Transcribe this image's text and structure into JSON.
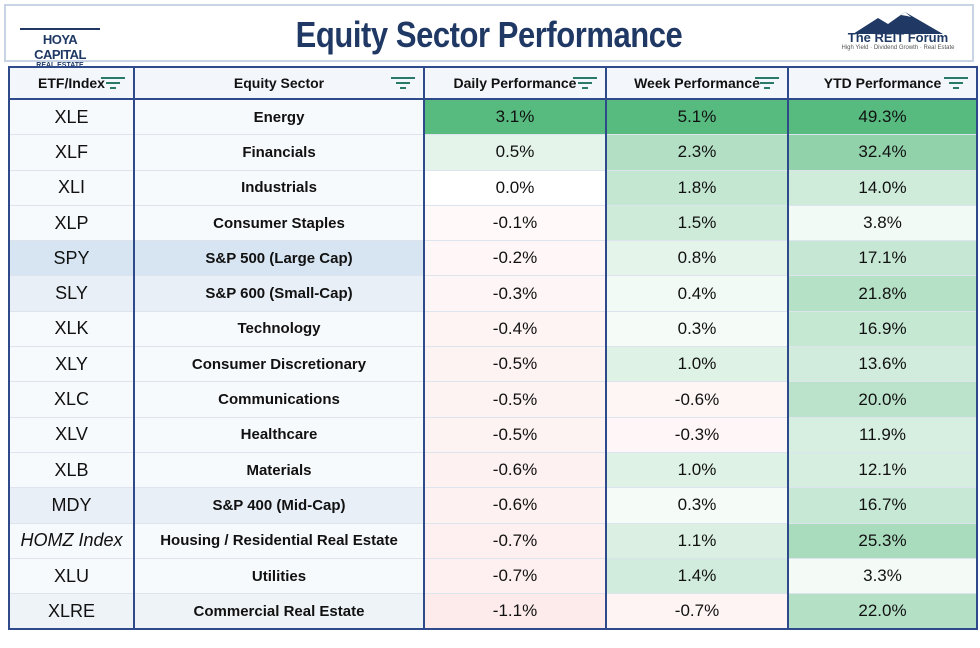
{
  "header": {
    "title": "Equity Sector Performance",
    "logo_left": "HOYA CAPITAL",
    "logo_left_sub": "REAL ESTATE",
    "logo_right": "The REIT Forum",
    "logo_right_sub": "High Yield · Dividend Growth · Real Estate"
  },
  "table": {
    "columns": [
      "ETF/Index",
      "Equity Sector",
      "Daily Performance",
      "Week Performance",
      "YTD Performance"
    ],
    "rows": [
      [
        "XLE",
        "Energy",
        "3.1%",
        "5.1%",
        "49.3%"
      ],
      [
        "XLF",
        "Financials",
        "0.5%",
        "2.3%",
        "32.4%"
      ],
      [
        "XLI",
        "Industrials",
        "0.0%",
        "1.8%",
        "14.0%"
      ],
      [
        "XLP",
        "Consumer Staples",
        "-0.1%",
        "1.5%",
        "3.8%"
      ],
      [
        "SPY",
        "S&P 500 (Large Cap)",
        "-0.2%",
        "0.8%",
        "17.1%"
      ],
      [
        "SLY",
        "S&P 600 (Small-Cap)",
        "-0.3%",
        "0.4%",
        "21.8%"
      ],
      [
        "XLK",
        "Technology",
        "-0.4%",
        "0.3%",
        "16.9%"
      ],
      [
        "XLY",
        "Consumer Discretionary",
        "-0.5%",
        "1.0%",
        "13.6%"
      ],
      [
        "XLC",
        "Communications",
        "-0.5%",
        "-0.6%",
        "20.0%"
      ],
      [
        "XLV",
        "Healthcare",
        "-0.5%",
        "-0.3%",
        "11.9%"
      ],
      [
        "XLB",
        "Materials",
        "-0.6%",
        "1.0%",
        "12.1%"
      ],
      [
        "MDY",
        "S&P 400 (Mid-Cap)",
        "-0.6%",
        "0.3%",
        "16.7%"
      ],
      [
        "HOMZ Index",
        "Housing / Residential Real Estate",
        "-0.7%",
        "1.1%",
        "25.3%"
      ],
      [
        "XLU",
        "Utilities",
        "-0.7%",
        "1.4%",
        "3.3%"
      ],
      [
        "XLRE",
        "Commercial Real Estate",
        "-1.1%",
        "-0.7%",
        "22.0%"
      ]
    ]
  }
}
